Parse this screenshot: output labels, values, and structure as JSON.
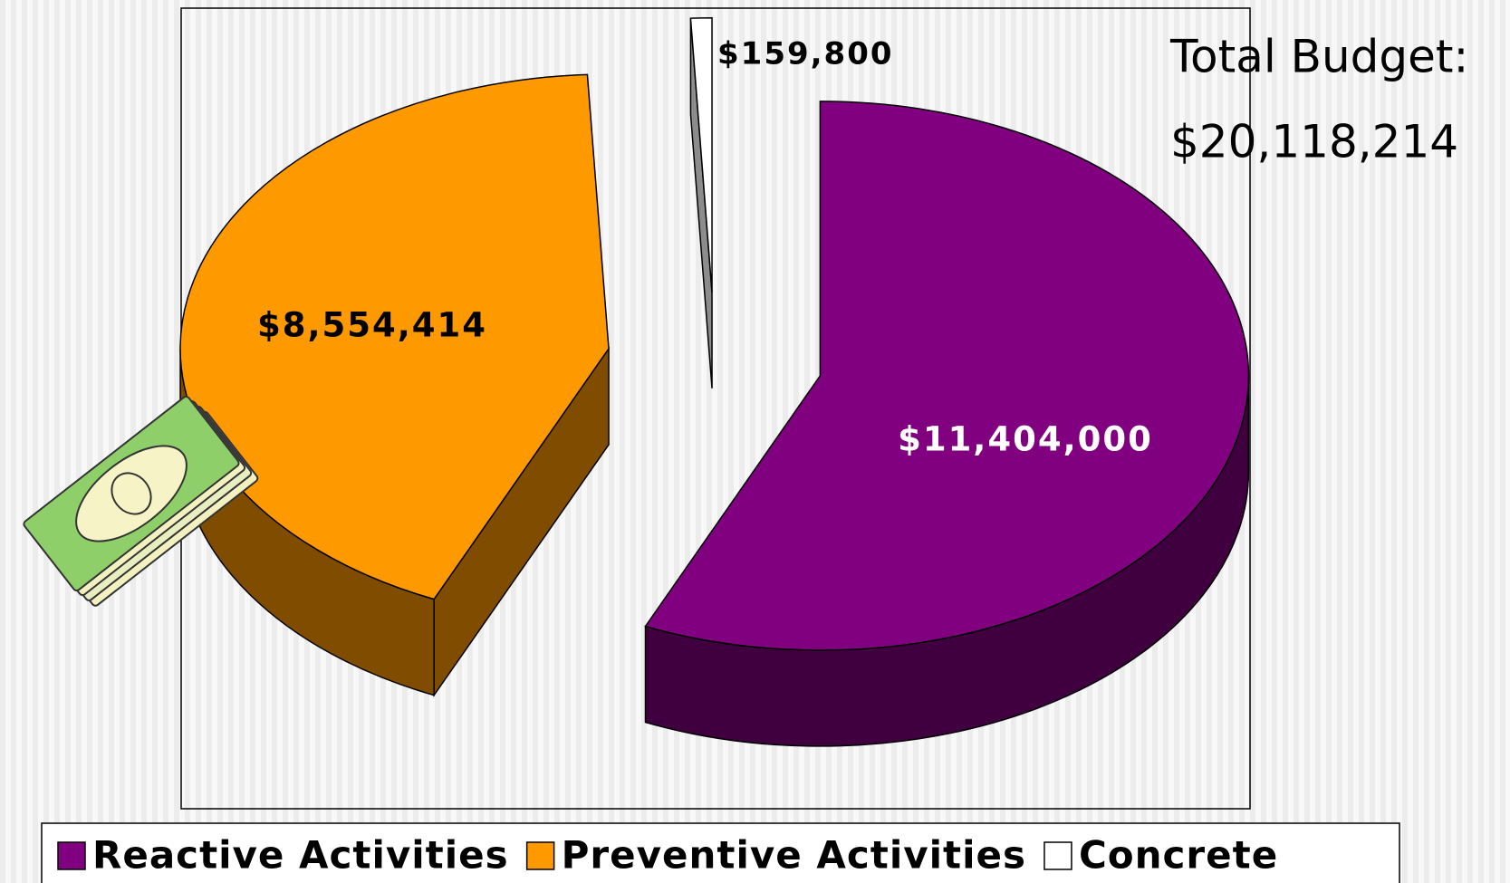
{
  "chart_data": {
    "type": "pie",
    "categories": [
      "Reactive Activities",
      "Preventive Activities",
      "Concrete"
    ],
    "values": [
      11404000,
      8554414,
      159800
    ],
    "value_labels": [
      "$11,404,000",
      "$8,554,414",
      "$159,800"
    ],
    "colors": [
      "#800080",
      "#FF9900",
      "#FFFFFF"
    ],
    "annotations": [
      "Total Budget:",
      "$20,118,214"
    ],
    "legend": "bottom"
  }
}
